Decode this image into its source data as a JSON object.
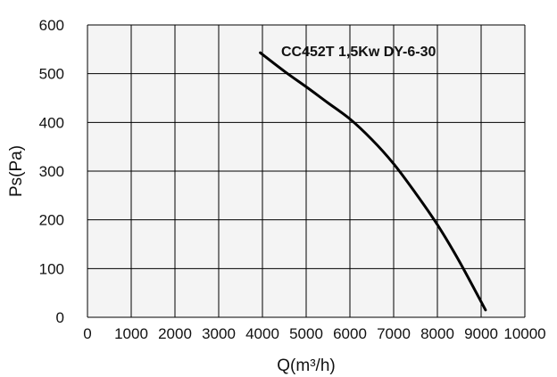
{
  "chart_data": {
    "type": "line",
    "xlabel": "Q(m³/h)",
    "ylabel": "Ps(Pa)",
    "xlim": [
      0,
      10000
    ],
    "ylim": [
      0,
      600
    ],
    "x_ticks": [
      0,
      1000,
      2000,
      3000,
      4000,
      5000,
      6000,
      7000,
      8000,
      9000,
      10000
    ],
    "y_ticks": [
      0,
      100,
      200,
      300,
      400,
      500,
      600
    ],
    "grid": true,
    "background_color": "#f4f4f4",
    "grid_color": "#000000",
    "series": [
      {
        "name": "CC452T 1,5Kw DY-6-30",
        "color": "#000000",
        "x": [
          3950,
          4500,
          5000,
          5500,
          6000,
          6500,
          7000,
          7500,
          8000,
          8500,
          9100
        ],
        "y": [
          543,
          505,
          473,
          440,
          407,
          365,
          315,
          255,
          190,
          115,
          15
        ]
      }
    ]
  }
}
